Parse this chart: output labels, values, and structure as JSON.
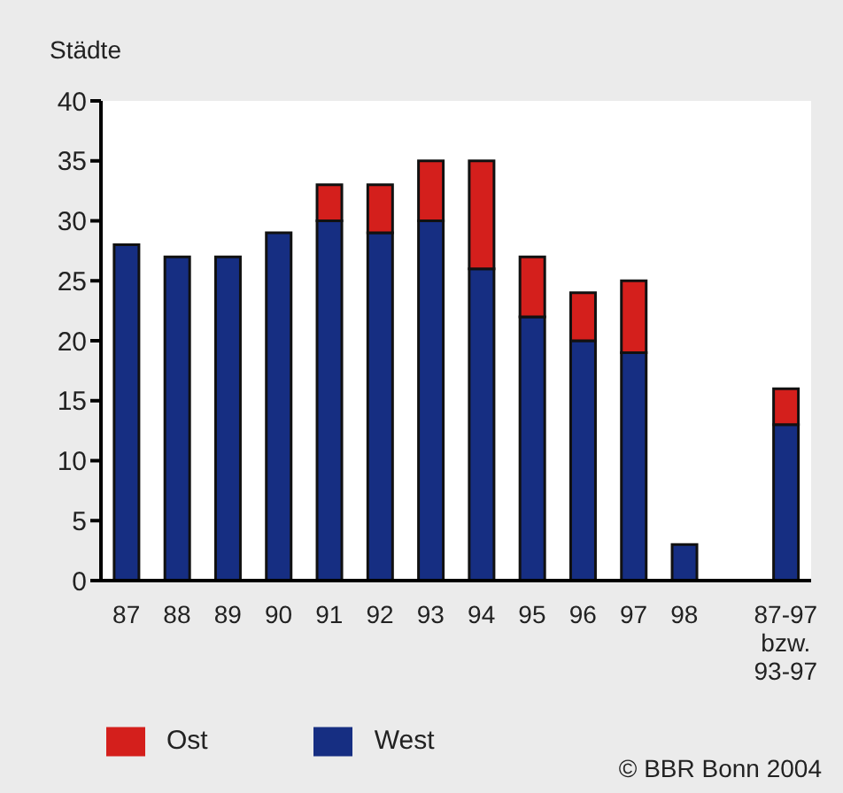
{
  "chart_data": {
    "type": "bar",
    "stacked": true,
    "ylabel": "Städte",
    "categories": [
      "87",
      "88",
      "89",
      "90",
      "91",
      "92",
      "93",
      "94",
      "95",
      "96",
      "97",
      "98",
      null,
      "87-97 bzw. 93-97"
    ],
    "series": [
      {
        "name": "West",
        "color": "#162e82",
        "values": [
          28,
          27,
          27,
          29,
          30,
          29,
          30,
          26,
          22,
          20,
          19,
          3,
          null,
          13
        ]
      },
      {
        "name": "Ost",
        "color": "#d41f1c",
        "values": [
          null,
          null,
          null,
          null,
          3,
          4,
          5,
          9,
          5,
          4,
          6,
          null,
          null,
          3
        ]
      }
    ],
    "ylim": [
      0,
      40
    ],
    "yticks": [
      0,
      5,
      10,
      15,
      20,
      25,
      30,
      35,
      40
    ],
    "legend": "bottom left",
    "annotations": [
      "© BBR Bonn 2004"
    ]
  }
}
